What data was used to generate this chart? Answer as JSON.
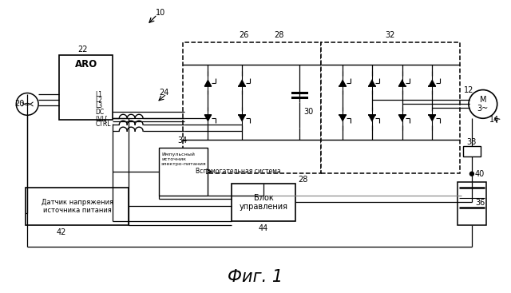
{
  "background_color": "#ffffff",
  "fig_text": "Фиг. 1",
  "impulse_text": "Импульсный источник электро-питания",
  "vsm_text_str": "Вспомогательная система",
  "control_text": "Блок\nуправления",
  "sensor_text": "Датчик напряжения\nисточника питания"
}
